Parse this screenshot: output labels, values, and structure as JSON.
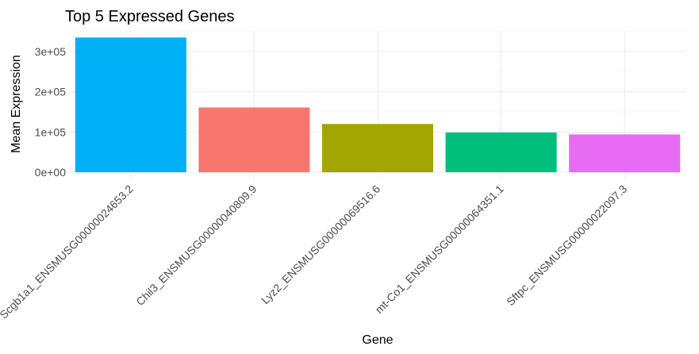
{
  "chart_data": {
    "type": "bar",
    "title": "Top 5 Expressed Genes",
    "xlabel": "Gene",
    "ylabel": "Mean Expression",
    "categories": [
      "Scgb1a1_ENSMUSG00000024653.2",
      "Chil3_ENSMUSG00000040809.9",
      "Lyz2_ENSMUSG00000069516.6",
      "mt-Co1_ENSMUSG00000064351.1",
      "Sftpc_ENSMUSG00000022097.3"
    ],
    "values": [
      335000,
      161000,
      120000,
      99000,
      94000
    ],
    "colors": [
      "#00b0f6",
      "#f8766d",
      "#a3a500",
      "#00bf7d",
      "#e76bf3"
    ],
    "ylim": [
      0,
      350000
    ],
    "yticks": [
      0,
      100000,
      200000,
      300000
    ],
    "ytick_labels": [
      "0e+00",
      "1e+05",
      "2e+05",
      "3e+05"
    ],
    "grid": true,
    "legend": "none"
  }
}
